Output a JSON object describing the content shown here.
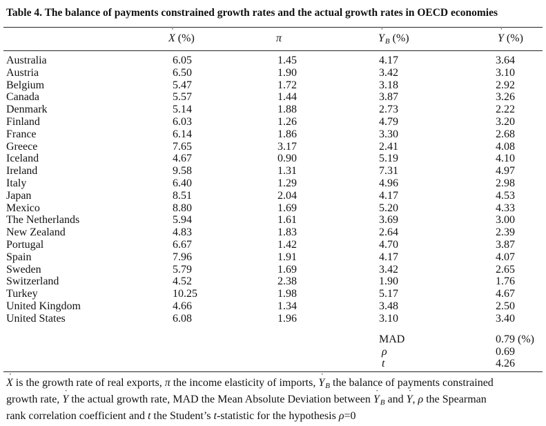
{
  "table": {
    "title": "Table 4. The balance of payments constrained growth rates and the actual growth rates in OECD economies",
    "columns": {
      "x_symbol": "X",
      "x_unit": " (%)",
      "pi": "π",
      "yb_symbol": "Y",
      "yb_subscript": "B",
      "yb_unit": " (%)",
      "y_symbol": "Y",
      "y_unit": " (%)",
      "dot": "˙"
    },
    "rows": [
      {
        "country": "Australia",
        "x": "6.05",
        "pi": "1.45",
        "yb": "4.17",
        "y": "3.64"
      },
      {
        "country": "Austria",
        "x": "6.50",
        "pi": "1.90",
        "yb": "3.42",
        "y": "3.10"
      },
      {
        "country": "Belgium",
        "x": "5.47",
        "pi": "1.72",
        "yb": "3.18",
        "y": "2.92"
      },
      {
        "country": "Canada",
        "x": "5.57",
        "pi": "1.44",
        "yb": "3.87",
        "y": "3.26"
      },
      {
        "country": "Denmark",
        "x": "5.14",
        "pi": "1.88",
        "yb": "2.73",
        "y": "2.22"
      },
      {
        "country": "Finland",
        "x": "6.03",
        "pi": "1.26",
        "yb": "4.79",
        "y": "3.20"
      },
      {
        "country": "France",
        "x": "6.14",
        "pi": "1.86",
        "yb": "3.30",
        "y": "2.68"
      },
      {
        "country": "Greece",
        "x": "7.65",
        "pi": "3.17",
        "yb": "2.41",
        "y": "4.08"
      },
      {
        "country": "Iceland",
        "x": "4.67",
        "pi": "0.90",
        "yb": "5.19",
        "y": "4.10"
      },
      {
        "country": "Ireland",
        "x": "9.58",
        "pi": "1.31",
        "yb": "7.31",
        "y": "4.97"
      },
      {
        "country": "Italy",
        "x": "6.40",
        "pi": "1.29",
        "yb": "4.96",
        "y": "2.98"
      },
      {
        "country": "Japan",
        "x": "8.51",
        "pi": "2.04",
        "yb": "4.17",
        "y": "4.53"
      },
      {
        "country": "Mexico",
        "x": "8.80",
        "pi": "1.69",
        "yb": "5.20",
        "y": "4.33"
      },
      {
        "country": "The Netherlands",
        "x": "5.94",
        "pi": "1.61",
        "yb": "3.69",
        "y": "3.00"
      },
      {
        "country": "New Zealand",
        "x": "4.83",
        "pi": "1.83",
        "yb": "2.64",
        "y": "2.39"
      },
      {
        "country": "Portugal",
        "x": "6.67",
        "pi": "1.42",
        "yb": "4.70",
        "y": "3.87"
      },
      {
        "country": "Spain",
        "x": "7.96",
        "pi": "1.91",
        "yb": "4.17",
        "y": "4.07"
      },
      {
        "country": "Sweden",
        "x": "5.79",
        "pi": "1.69",
        "yb": "3.42",
        "y": "2.65"
      },
      {
        "country": "Switzerland",
        "x": "4.52",
        "pi": "2.38",
        "yb": "1.90",
        "y": "1.76"
      },
      {
        "country": "Turkey",
        "x": "10.25",
        "pi": "1.98",
        "yb": "5.17",
        "y": "4.67"
      },
      {
        "country": "United Kingdom",
        "x": "4.66",
        "pi": "1.34",
        "yb": "3.48",
        "y": "2.50"
      },
      {
        "country": "United States",
        "x": "6.08",
        "pi": "1.96",
        "yb": "3.10",
        "y": "3.40"
      }
    ],
    "stats": {
      "mad_label": "MAD",
      "mad_value": "0.79 (%)",
      "rho_label": "ρ",
      "rho_value": "0.69",
      "t_label": "t",
      "t_value": "4.26"
    },
    "note": {
      "line1_a": "X",
      "line1_b": " is the growth rate of real exports, ",
      "line1_c": "π",
      "line1_d": " the income elasticity of imports, ",
      "line1_e": "Y",
      "line1_f": "B",
      "line1_g": " the balance of payments constrained",
      "line2_a": "growth rate, ",
      "line2_b": "Y",
      "line2_c": " the actual growth rate, MAD the Mean Absolute Deviation between ",
      "line2_d": "Y",
      "line2_e": "B",
      "line2_f": " and ",
      "line2_g": "Y",
      "line2_h": ", ",
      "line2_i": "ρ",
      "line2_j": " the Spearman",
      "line3_a": "rank correlation coefficient and ",
      "line3_b": "t",
      "line3_c": " the Student’s ",
      "line3_d": "t",
      "line3_e": "-statistic for the hypothesis ",
      "line3_f": "ρ",
      "line3_g": "=0"
    }
  }
}
